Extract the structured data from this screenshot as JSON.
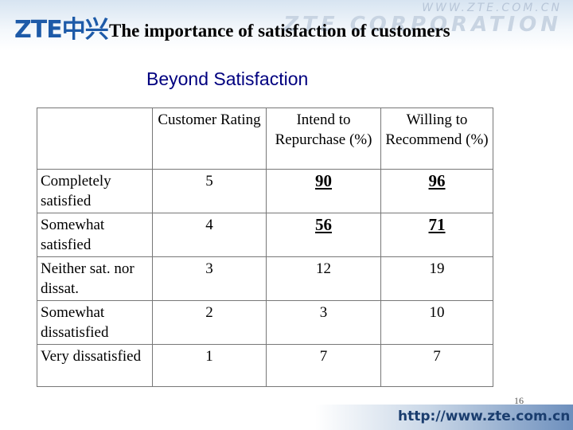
{
  "header": {
    "logo": "ZTE中兴",
    "watermark_url": "WWW.ZTE.COM.CN",
    "watermark_corp": "ZTE CORPORATION",
    "title": "The importance of  satisfaction of customers"
  },
  "subtitle": "Beyond Satisfaction",
  "table": {
    "columns": [
      "",
      "Customer Rating",
      "Intend to Repurchase (%)",
      "Willing to Recommend (%)"
    ],
    "rows": [
      [
        "Completely satisfied",
        5,
        90,
        96
      ],
      [
        "Somewhat satisfied",
        4,
        56,
        71
      ],
      [
        "Neither sat. nor dissat.",
        3,
        12,
        19
      ],
      [
        "Somewhat dissatisfied",
        2,
        3,
        10
      ],
      [
        "Very dissatisfied",
        1,
        7,
        7
      ]
    ],
    "emphasized_rows": [
      0,
      1
    ]
  },
  "page_number": "16",
  "footer": {
    "url": "http://www.zte.com.cn"
  }
}
